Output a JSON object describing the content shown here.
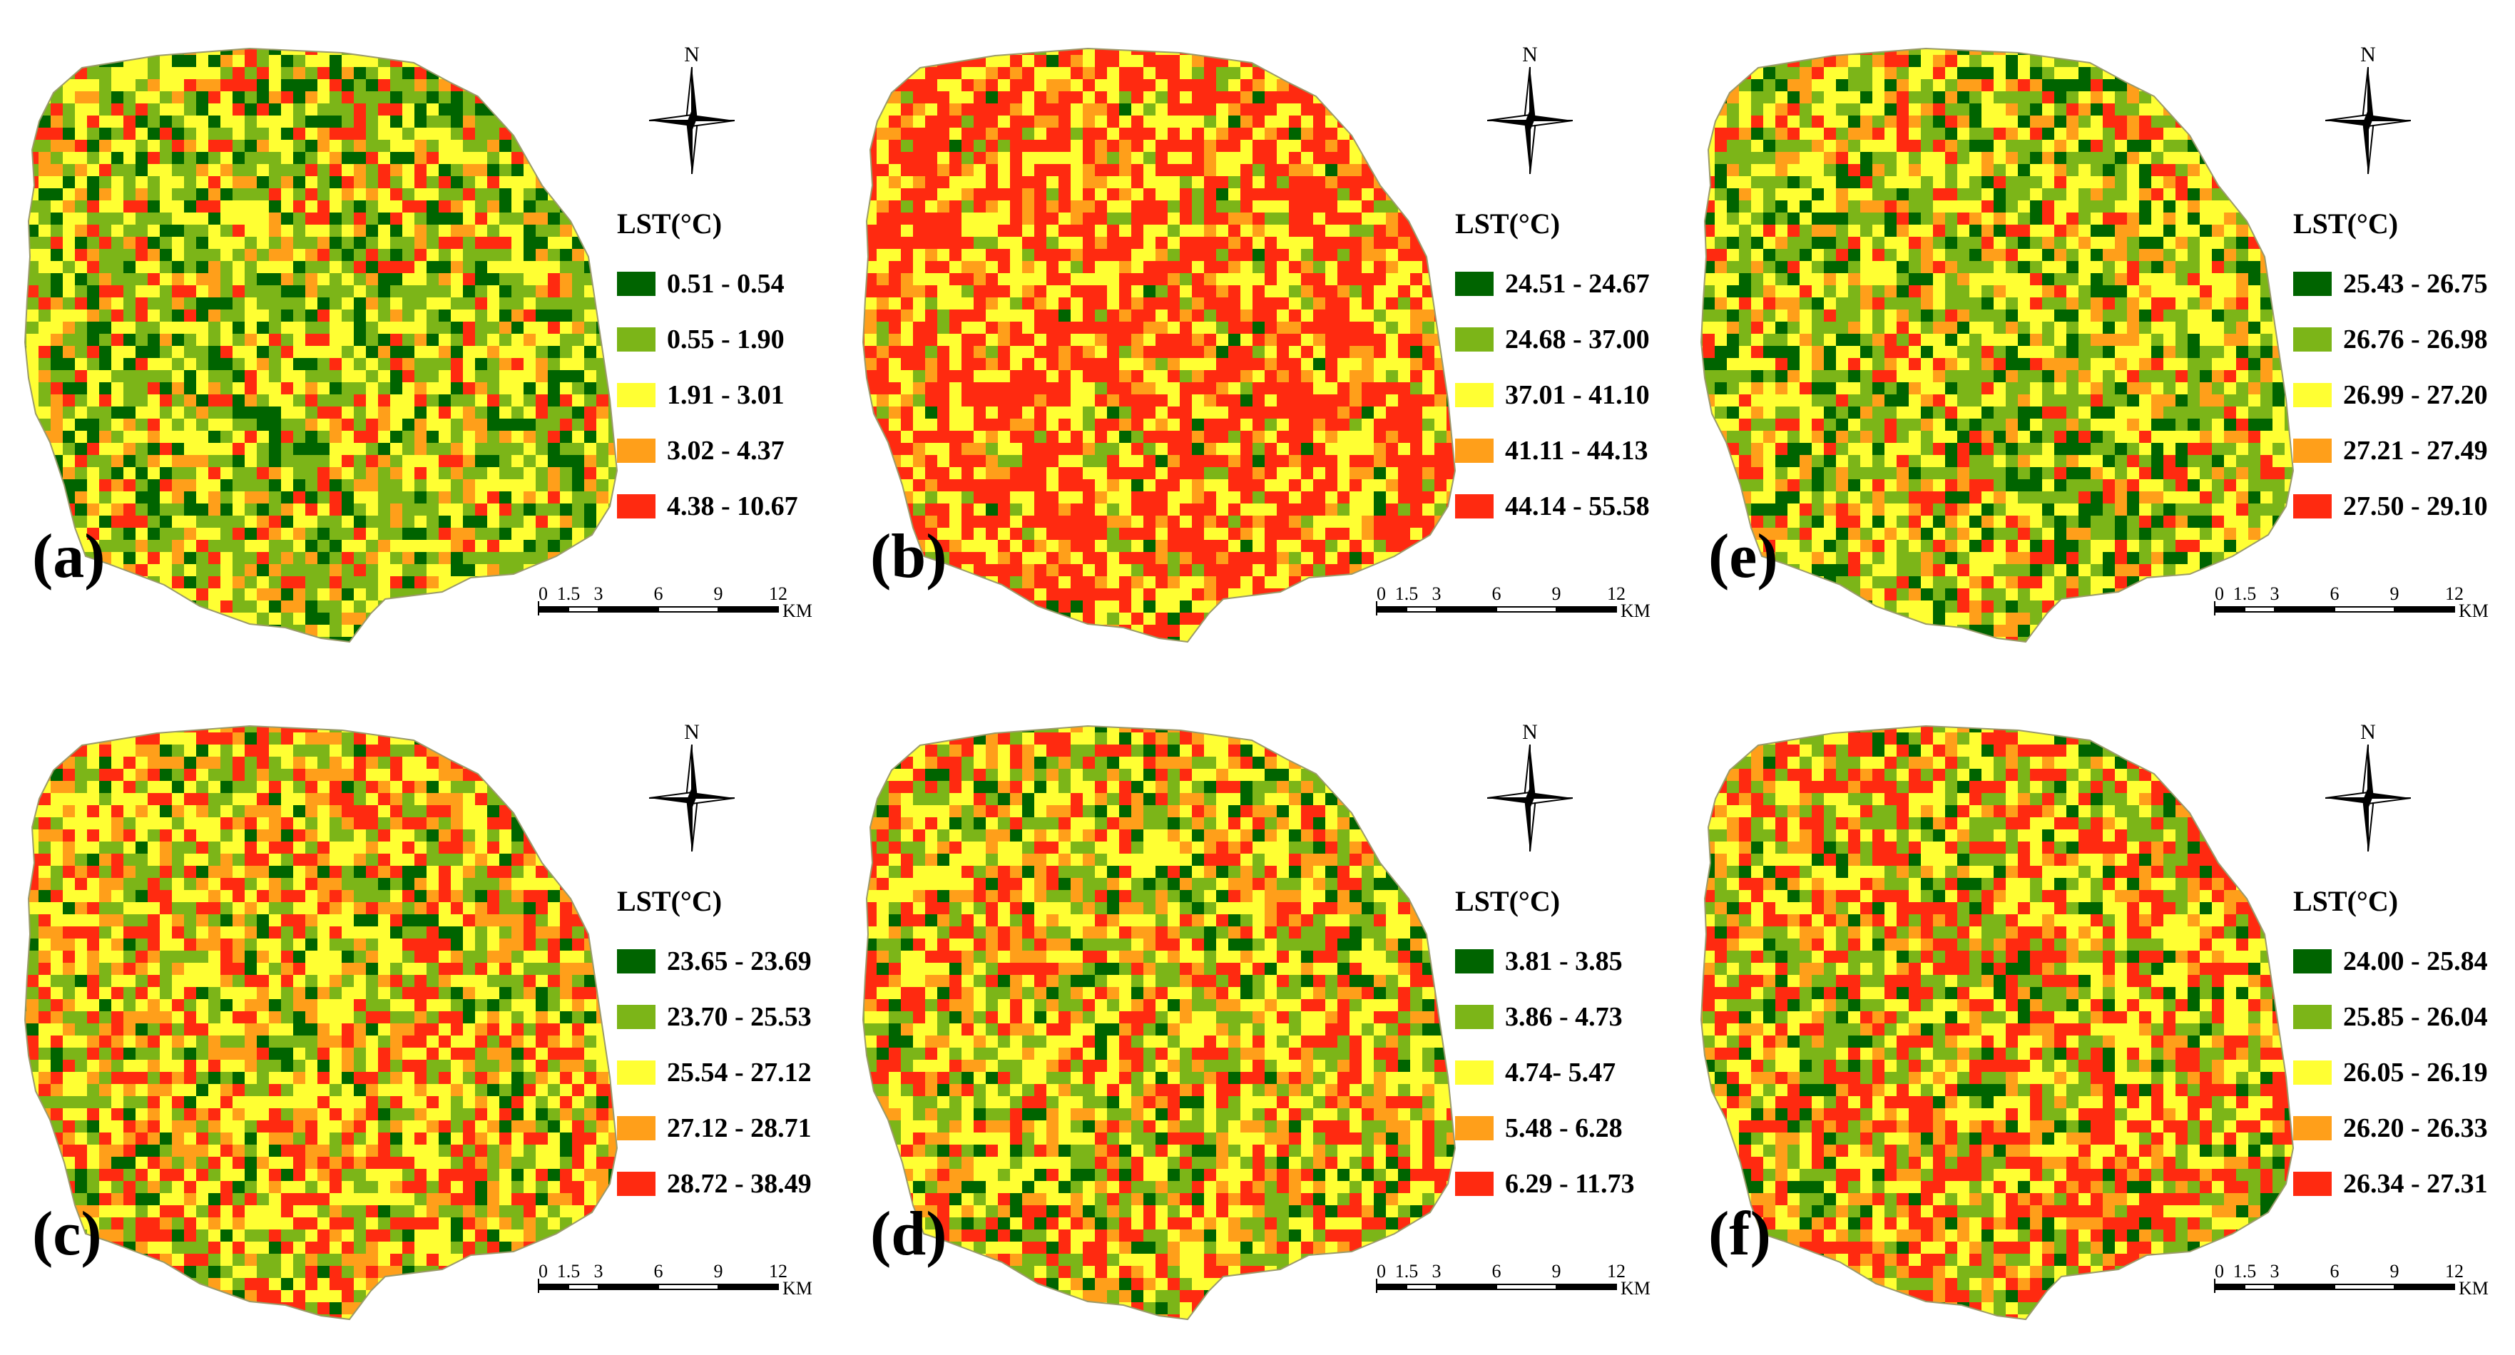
{
  "figure": {
    "compass_letter": "N",
    "scale_labels": [
      "0",
      "1.5",
      "3",
      "6",
      "9",
      "12"
    ],
    "scale_unit": "KM",
    "colors": [
      "#006400",
      "#7cb518",
      "#ffff33",
      "#ff9f1a",
      "#ff2a10"
    ],
    "panels": [
      {
        "id": "a",
        "label": "(a)",
        "legend_title": "LST(°C)",
        "classes": [
          "0.51 - 0.54",
          "0.55 - 1.90",
          "1.91 - 3.01",
          "3.02 - 4.37",
          "4.38 - 10.67"
        ],
        "class_weights": [
          0.16,
          0.3,
          0.3,
          0.12,
          0.12
        ]
      },
      {
        "id": "b",
        "label": "(b)",
        "legend_title": "LST(°C)",
        "classes": [
          "24.51 - 24.67",
          "24.68 - 37.00",
          "37.01 - 41.10",
          "41.11 - 44.13",
          "44.14 - 55.58"
        ],
        "class_weights": [
          0.02,
          0.07,
          0.28,
          0.13,
          0.5
        ]
      },
      {
        "id": "e",
        "label": "(e)",
        "legend_title": "LST(°C)",
        "classes": [
          "25.43 - 26.75",
          "26.76 - 26.98",
          "26.99 - 27.20",
          "27.21 - 27.49",
          "27.50 - 29.10"
        ],
        "class_weights": [
          0.16,
          0.28,
          0.3,
          0.14,
          0.12
        ]
      },
      {
        "id": "c",
        "label": "(c)",
        "legend_title": "LST(°C)",
        "classes": [
          "23.65 - 23.69",
          "23.70 - 25.53",
          "25.54 - 27.12",
          "27.12 - 28.71",
          "28.72 - 38.49"
        ],
        "class_weights": [
          0.08,
          0.22,
          0.3,
          0.18,
          0.22
        ]
      },
      {
        "id": "d",
        "label": "(d)",
        "legend_title": "LST(°C)",
        "classes": [
          "3.81 - 3.85",
          "3.86 - 4.73",
          "4.74- 5.47",
          "5.48 - 6.28",
          "6.29 - 11.73"
        ],
        "class_weights": [
          0.1,
          0.22,
          0.3,
          0.16,
          0.22
        ]
      },
      {
        "id": "f",
        "label": "(f)",
        "legend_title": "LST(°C)",
        "classes": [
          "24.00 - 25.84",
          "25.85 - 26.04",
          "26.05 - 26.19",
          "26.20 - 26.33",
          "26.34 - 27.31"
        ],
        "class_weights": [
          0.1,
          0.2,
          0.24,
          0.14,
          0.32
        ]
      }
    ]
  }
}
